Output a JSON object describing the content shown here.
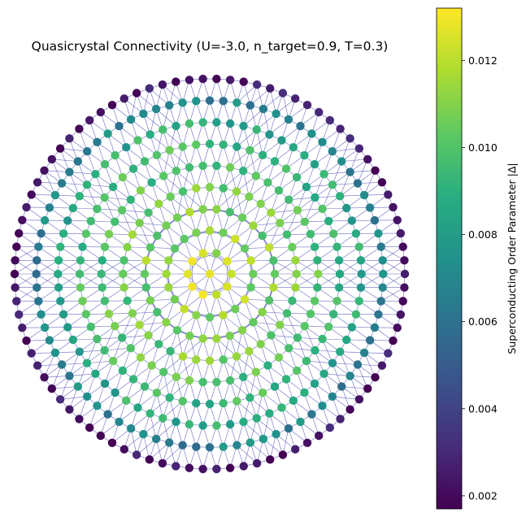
{
  "chart_data": {
    "type": "scatter",
    "title": "Quasicrystal Connectivity (U=-3.0, n_target=0.9, T=0.3)",
    "subtype": "network graph of a radially symmetric quasicrystal lattice; nodes colored by local order parameter, connected by thin edges",
    "axes_visible": false,
    "grid": false,
    "aspect": "equal",
    "edge_color": "#3b3bb0",
    "colormap": "viridis",
    "colorbar": {
      "label": "Superconducting Order Parameter |Δ|",
      "range": [
        0.0017,
        0.0132
      ],
      "ticks": [
        0.002,
        0.004,
        0.006,
        0.008,
        0.01,
        0.012
      ],
      "tick_labels": [
        "0.002",
        "0.004",
        "0.006",
        "0.008",
        "0.010",
        "0.012"
      ],
      "placement": "right"
    },
    "lattice": {
      "shells": 9,
      "points_per_shell_base": 5,
      "radial_profile": [
        {
          "r": 0.0,
          "value": 0.0128
        },
        {
          "r": 0.15,
          "value": 0.0116
        },
        {
          "r": 0.35,
          "value": 0.0108
        },
        {
          "r": 0.55,
          "value": 0.0101
        },
        {
          "r": 0.75,
          "value": 0.0091
        },
        {
          "r": 0.88,
          "value": 0.0072
        },
        {
          "r": 1.0,
          "value": 0.002
        }
      ]
    }
  }
}
